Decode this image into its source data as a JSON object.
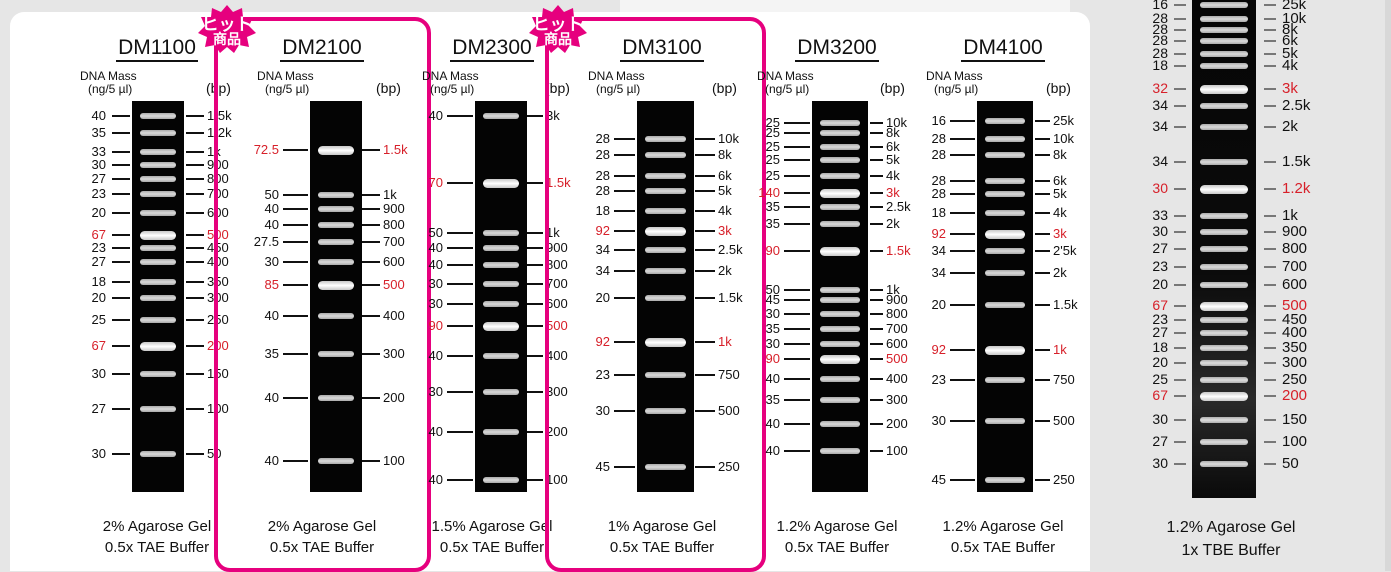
{
  "hit_badge": {
    "line1": "ヒット",
    "line2": "商品",
    "color": "#e6007e"
  },
  "header": {
    "mass_line1": "DNA Mass",
    "mass_line2": "(ng/5 µl)",
    "bp": "(bp)"
  },
  "colors": {
    "highlight": "#d7202a",
    "frame": "#e6007e"
  },
  "panels": [
    {
      "id": "DM1100",
      "title": "DM1100",
      "caption1": "2% Agarose Gel",
      "caption2": "0.5x TAE Buffer",
      "highlighted": false,
      "bands": [
        [
          "40",
          "1.5k",
          false
        ],
        [
          "35",
          "1.2k",
          false
        ],
        [
          "33",
          "1k",
          false
        ],
        [
          "30",
          "900",
          false
        ],
        [
          "27",
          "800",
          false
        ],
        [
          "23",
          "700",
          false
        ],
        [
          "20",
          "600",
          false
        ],
        [
          "67",
          "500",
          true
        ],
        [
          "23",
          "450",
          false
        ],
        [
          "27",
          "400",
          false
        ],
        [
          "18",
          "350",
          false
        ],
        [
          "20",
          "300",
          false
        ],
        [
          "25",
          "250",
          false
        ],
        [
          "67",
          "200",
          true
        ],
        [
          "30",
          "150",
          false
        ],
        [
          "27",
          "100",
          false
        ],
        [
          "30",
          "50",
          false
        ]
      ]
    },
    {
      "id": "DM2100",
      "title": "DM2100",
      "caption1": "2% Agarose Gel",
      "caption2": "0.5x TAE Buffer",
      "highlighted": true,
      "bands": [
        [
          "72.5",
          "1.5k",
          true
        ],
        [
          "50",
          "1k",
          false
        ],
        [
          "40",
          "900",
          false
        ],
        [
          "40",
          "800",
          false
        ],
        [
          "27.5",
          "700",
          false
        ],
        [
          "30",
          "600",
          false
        ],
        [
          "85",
          "500",
          true
        ],
        [
          "40",
          "400",
          false
        ],
        [
          "35",
          "300",
          false
        ],
        [
          "40",
          "200",
          false
        ],
        [
          "40",
          "100",
          false
        ]
      ]
    },
    {
      "id": "DM2300",
      "title": "DM2300",
      "caption1": "1.5% Agarose Gel",
      "caption2": "0.5x TAE Buffer",
      "highlighted": false,
      "bands": [
        [
          "40",
          "3k",
          false
        ],
        [
          "70",
          "1.5k",
          true
        ],
        [
          "50",
          "1k",
          false
        ],
        [
          "40",
          "900",
          false
        ],
        [
          "40",
          "800",
          false
        ],
        [
          "30",
          "700",
          false
        ],
        [
          "30",
          "600",
          false
        ],
        [
          "90",
          "500",
          true
        ],
        [
          "40",
          "400",
          false
        ],
        [
          "30",
          "300",
          false
        ],
        [
          "40",
          "200",
          false
        ],
        [
          "40",
          "100",
          false
        ]
      ]
    },
    {
      "id": "DM3100",
      "title": "DM3100",
      "caption1": "1% Agarose Gel",
      "caption2": "0.5x TAE Buffer",
      "highlighted": true,
      "bands": [
        [
          "28",
          "10k",
          false
        ],
        [
          "28",
          "8k",
          false
        ],
        [
          "28",
          "6k",
          false
        ],
        [
          "28",
          "5k",
          false
        ],
        [
          "18",
          "4k",
          false
        ],
        [
          "92",
          "3k",
          true
        ],
        [
          "34",
          "2.5k",
          false
        ],
        [
          "34",
          "2k",
          false
        ],
        [
          "20",
          "1.5k",
          false
        ],
        [
          "92",
          "1k",
          true
        ],
        [
          "23",
          "750",
          false
        ],
        [
          "30",
          "500",
          false
        ],
        [
          "45",
          "250",
          false
        ]
      ]
    },
    {
      "id": "DM3200",
      "title": "DM3200",
      "caption1": "1.2% Agarose Gel",
      "caption2": "0.5x TAE Buffer",
      "highlighted": false,
      "bands": [
        [
          "25",
          "10k",
          false
        ],
        [
          "25",
          "8k",
          false
        ],
        [
          "25",
          "6k",
          false
        ],
        [
          "25",
          "5k",
          false
        ],
        [
          "25",
          "4k",
          false
        ],
        [
          "140",
          "3k",
          true
        ],
        [
          "35",
          "2.5k",
          false
        ],
        [
          "35",
          "2k",
          false
        ],
        [
          "90",
          "1.5k",
          true
        ],
        [
          "50",
          "1k",
          false
        ],
        [
          "45",
          "900",
          false
        ],
        [
          "30",
          "800",
          false
        ],
        [
          "35",
          "700",
          false
        ],
        [
          "30",
          "600",
          false
        ],
        [
          "90",
          "500",
          true
        ],
        [
          "40",
          "400",
          false
        ],
        [
          "35",
          "300",
          false
        ],
        [
          "40",
          "200",
          false
        ],
        [
          "40",
          "100",
          false
        ]
      ]
    },
    {
      "id": "DM4100",
      "title": "DM4100",
      "caption1": "1.2% Agarose Gel",
      "caption2": "0.5x TAE Buffer",
      "highlighted": false,
      "bands": [
        [
          "16",
          "25k",
          false
        ],
        [
          "28",
          "10k",
          false
        ],
        [
          "28",
          "8k",
          false
        ],
        [
          "28",
          "6k",
          false
        ],
        [
          "28",
          "5k",
          false
        ],
        [
          "18",
          "4k",
          false
        ],
        [
          "92",
          "3k",
          true
        ],
        [
          "34",
          "2'5k",
          false
        ],
        [
          "34",
          "2k",
          false
        ],
        [
          "20",
          "1.5k",
          false
        ],
        [
          "92",
          "1k",
          true
        ],
        [
          "23",
          "750",
          false
        ],
        [
          "30",
          "500",
          false
        ],
        [
          "45",
          "250",
          false
        ]
      ]
    },
    {
      "id": "RIGHT",
      "title": "",
      "caption1": "1.2% Agarose Gel",
      "caption2": "1x TBE Buffer",
      "highlighted": false,
      "bands": [
        [
          "16",
          "25k",
          false
        ],
        [
          "28",
          "10k",
          false
        ],
        [
          "28",
          "8k",
          false
        ],
        [
          "28",
          "6k",
          false
        ],
        [
          "28",
          "5k",
          false
        ],
        [
          "18",
          "4k",
          false
        ],
        [
          "32",
          "3k",
          true
        ],
        [
          "34",
          "2.5k",
          false
        ],
        [
          "34",
          "2k",
          false
        ],
        [
          "34",
          "1.5k",
          false
        ],
        [
          "30",
          "1.2k",
          true
        ],
        [
          "33",
          "1k",
          false
        ],
        [
          "30",
          "900",
          false
        ],
        [
          "27",
          "800",
          false
        ],
        [
          "23",
          "700",
          false
        ],
        [
          "20",
          "600",
          false
        ],
        [
          "67",
          "500",
          true
        ],
        [
          "23",
          "450",
          false
        ],
        [
          "27",
          "400",
          false
        ],
        [
          "18",
          "350",
          false
        ],
        [
          "20",
          "300",
          false
        ],
        [
          "25",
          "250",
          false
        ],
        [
          "67",
          "200",
          true
        ],
        [
          "30",
          "150",
          false
        ],
        [
          "27",
          "100",
          false
        ],
        [
          "30",
          "50",
          false
        ]
      ]
    }
  ]
}
